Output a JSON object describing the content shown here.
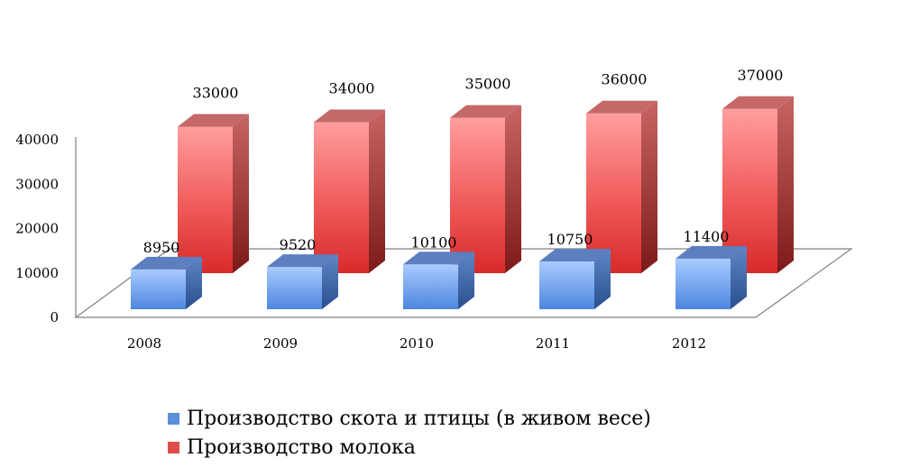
{
  "chart_data": {
    "type": "bar",
    "categories": [
      "2008",
      "2009",
      "2010",
      "2011",
      "2012"
    ],
    "series": [
      {
        "name": "Производство скота и птицы (в живом весе)",
        "values": [
          8950,
          9520,
          10100,
          10750,
          11400
        ],
        "color": "#5b8fd9"
      },
      {
        "name": "Производство молока",
        "values": [
          33000,
          34000,
          35000,
          36000,
          37000
        ],
        "color": "#e04b4b"
      }
    ],
    "yticks": [
      "0",
      "10000",
      "20000",
      "30000",
      "40000"
    ],
    "ylim": [
      0,
      40000
    ],
    "title": "",
    "xlabel": "",
    "ylabel": "",
    "legend_position": "bottom",
    "style": "3d-columns"
  }
}
